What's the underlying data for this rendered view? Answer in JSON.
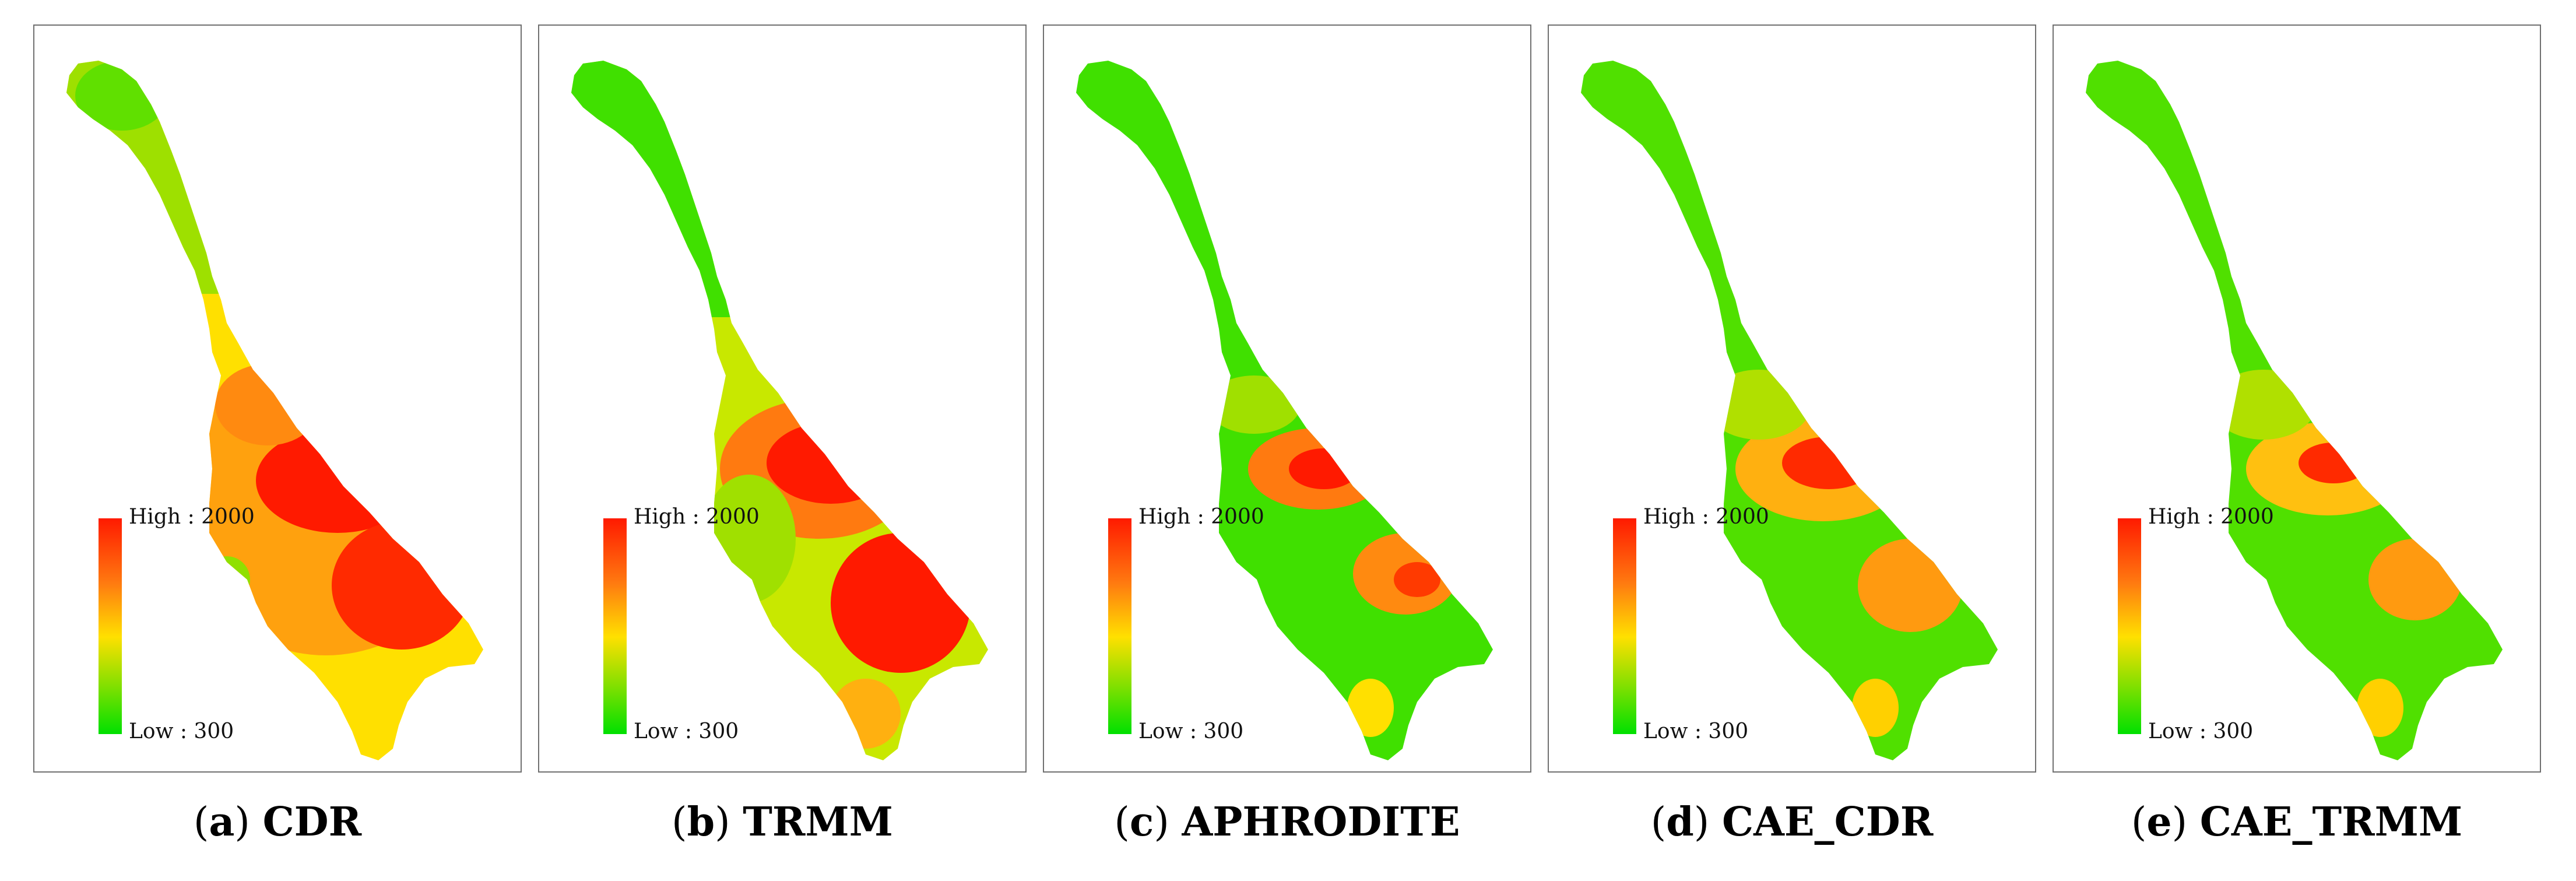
{
  "legend": {
    "high_label": "High : 2000",
    "low_label": "Low : 300"
  },
  "colors": {
    "low": "#00e000",
    "mid_low": "#80e000",
    "mid": "#ffe000",
    "mid_high": "#ff7a10",
    "high": "#ff1a00"
  },
  "panels": [
    {
      "letter": "a",
      "name": "CDR",
      "intensity": "high"
    },
    {
      "letter": "b",
      "name": "TRMM",
      "intensity": "high-south"
    },
    {
      "letter": "c",
      "name": "APHRODITE",
      "intensity": "low"
    },
    {
      "letter": "d",
      "name": "CAE_CDR",
      "intensity": "medium"
    },
    {
      "letter": "e",
      "name": "CAE_TRMM",
      "intensity": "medium-low"
    }
  ]
}
